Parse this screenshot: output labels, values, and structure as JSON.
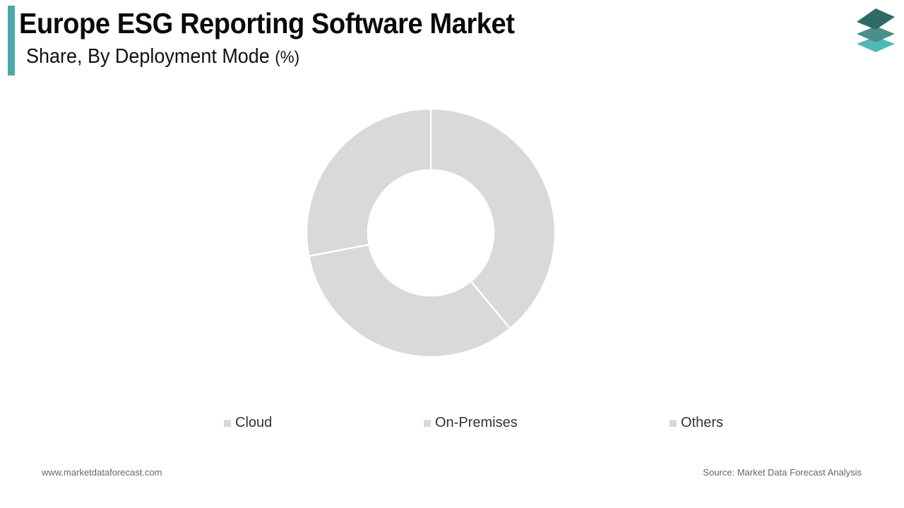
{
  "header": {
    "title": "Europe ESG Reporting Software Market",
    "subtitle": "Share, By Deployment Mode",
    "unit": "(%)",
    "accent_color": "#4aa8a8"
  },
  "logo": {
    "icon": "stacked-layers-icon",
    "colors": [
      "#2f6b66",
      "#4a8f8a",
      "#4fb8b4"
    ]
  },
  "legend": {
    "items": [
      {
        "label": "Cloud",
        "color": "#d9d9d9"
      },
      {
        "label": "On-Premises",
        "color": "#d9d9d9"
      },
      {
        "label": "Others",
        "color": "#d9d9d9"
      }
    ]
  },
  "footer": {
    "website": "www.marketdataforecast.com",
    "source": "Source: Market Data Forecast Analysis"
  },
  "chart_data": {
    "type": "pie",
    "subtype": "donut",
    "title": "Europe ESG Reporting Software Market",
    "subtitle": "Share, By Deployment Mode (%)",
    "categories": [
      "Cloud",
      "On-Premises",
      "Others"
    ],
    "values": [
      39,
      33,
      28
    ],
    "colors": [
      "#d9d9d9",
      "#d9d9d9",
      "#d9d9d9"
    ],
    "start_angle_deg": 0,
    "direction": "clockwise",
    "legend_position": "bottom",
    "data_labels": false
  }
}
